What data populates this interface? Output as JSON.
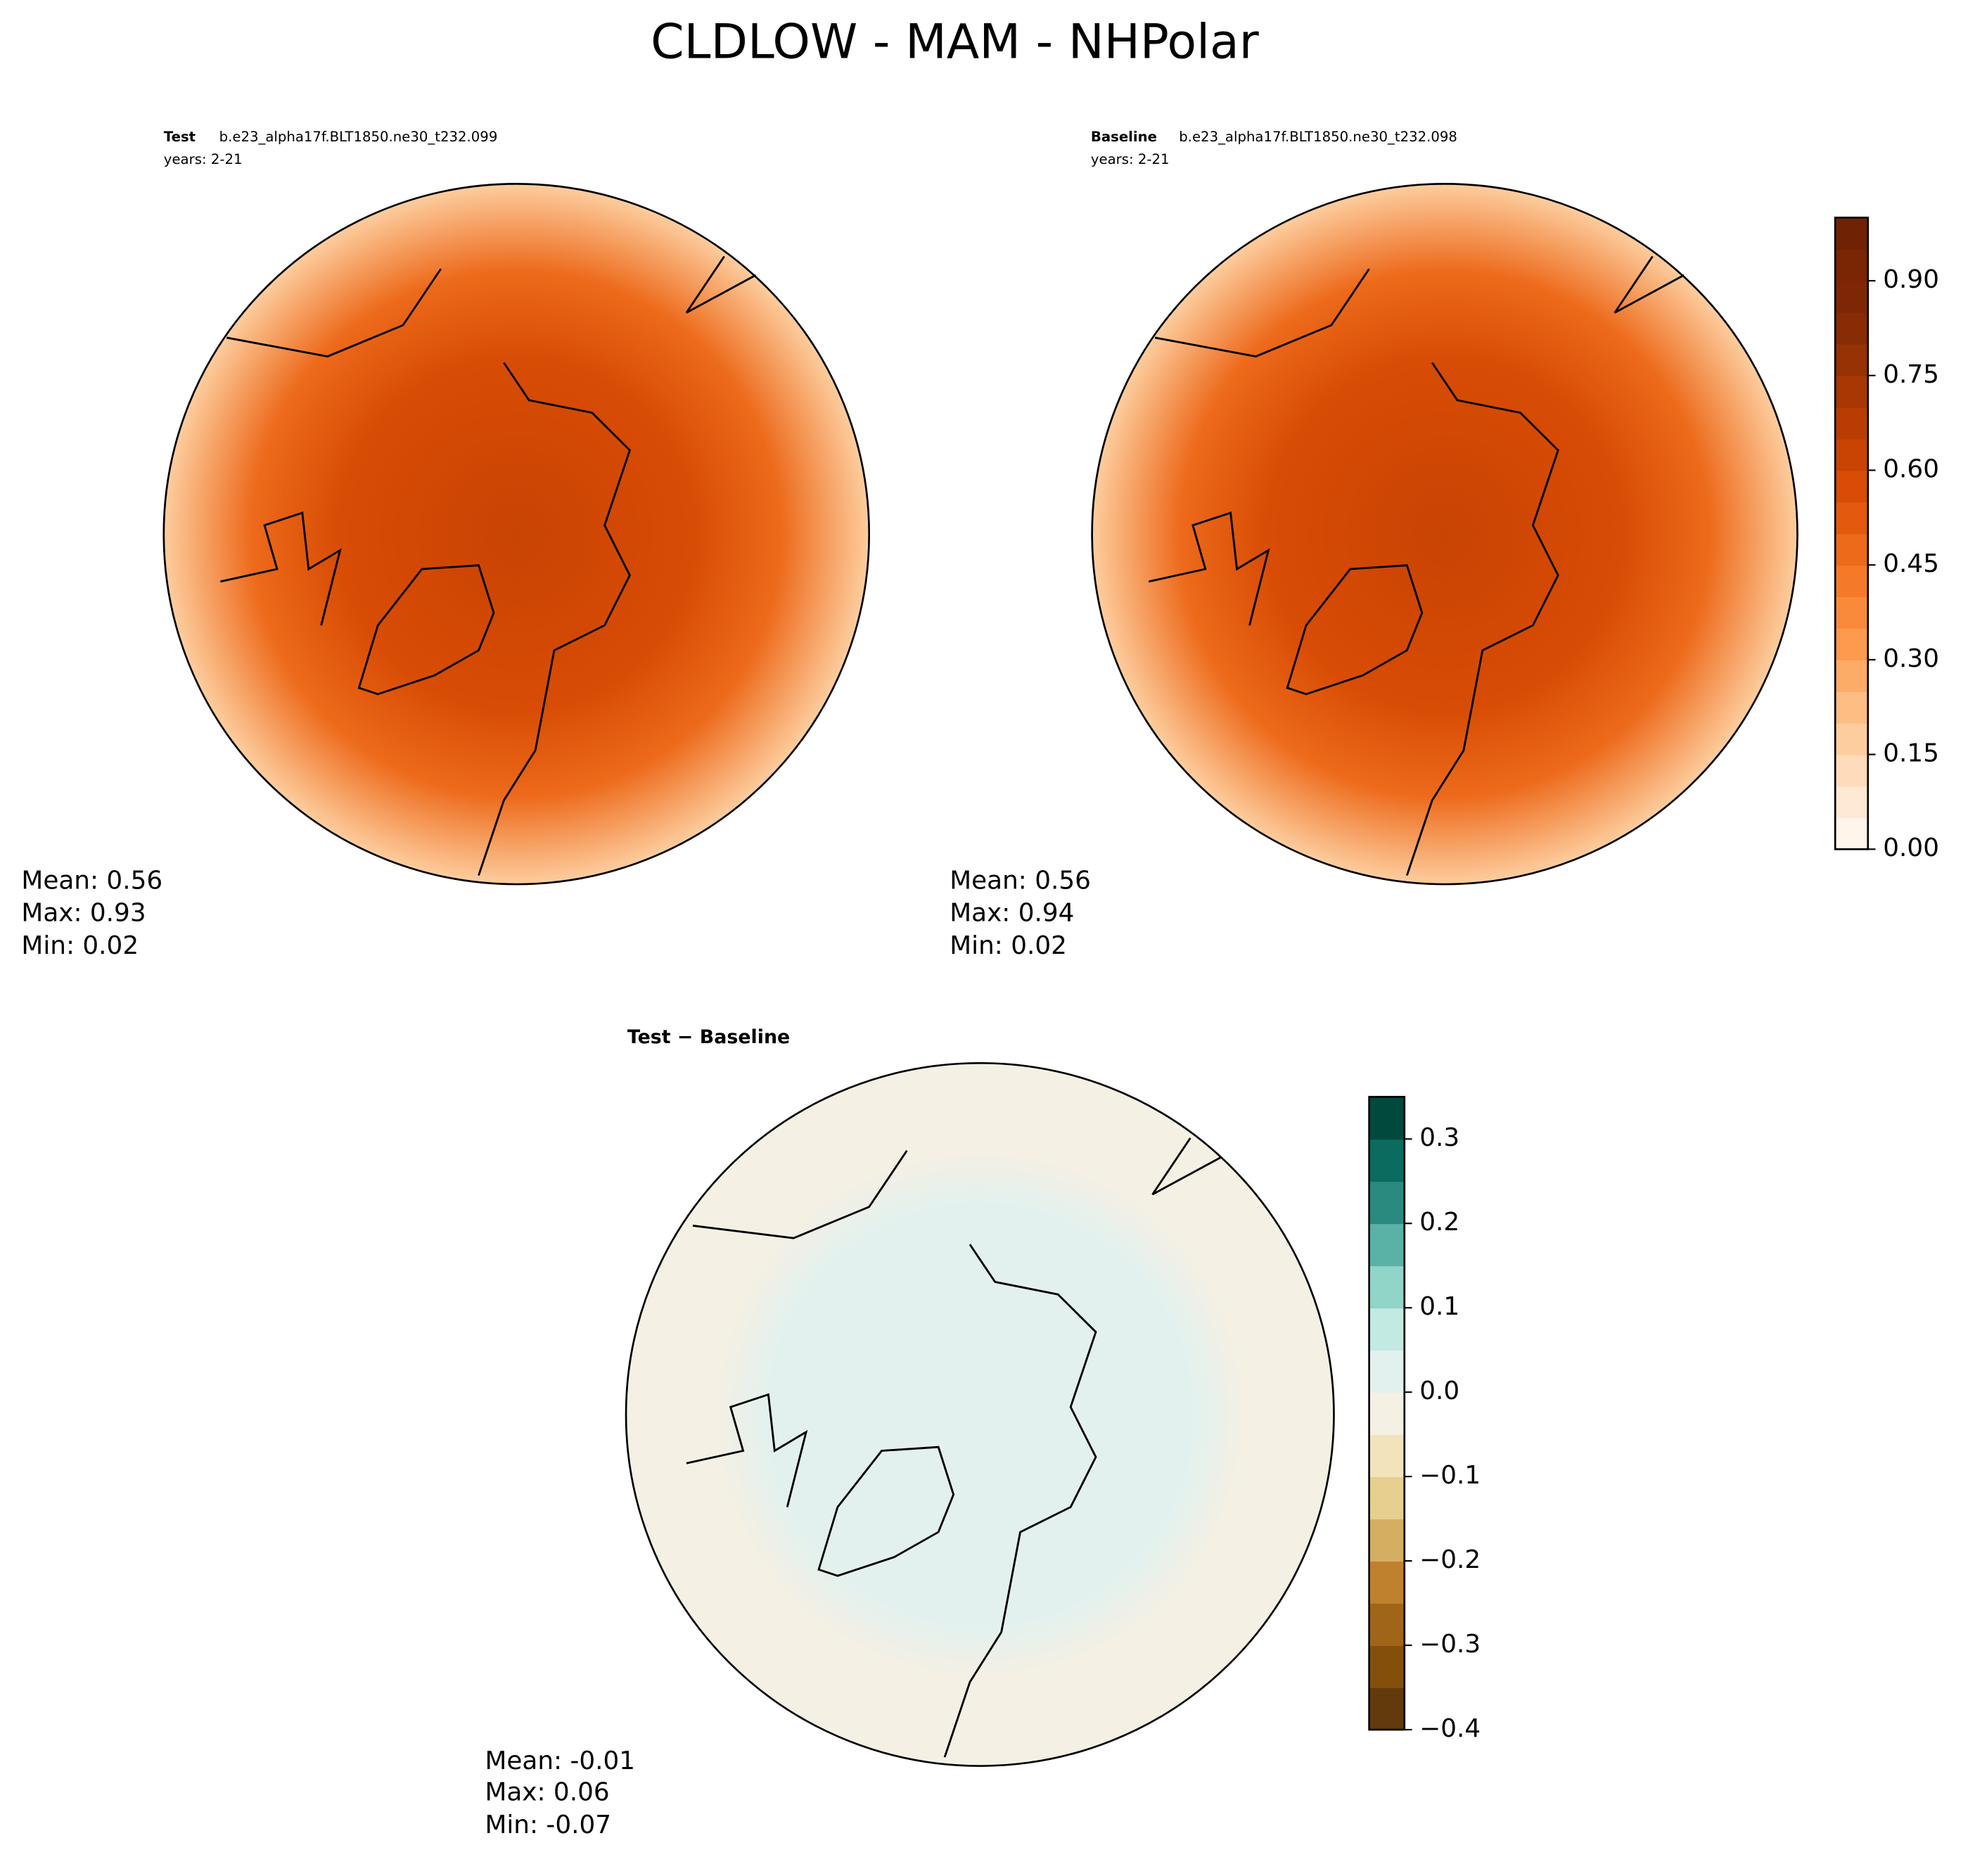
{
  "title": "CLDLOW - MAM - NHPolar",
  "panels": [
    {
      "label_bold": "Test",
      "label": "b.e23_alpha17f.BLT1850.ne30_t232.099",
      "years": "years: 2-21",
      "stats": [
        "Mean:  0.56",
        "Max:  0.93",
        "Min:  0.02"
      ]
    },
    {
      "label_bold": "Baseline",
      "label": "b.e23_alpha17f.BLT1850.ne30_t232.098",
      "years": "years: 2-21",
      "stats": [
        "Mean:  0.56",
        "Max:  0.94",
        "Min:  0.02"
      ]
    },
    {
      "label_bold": "Test − Baseline",
      "stats": [
        "Mean: -0.01",
        "Max:  0.06",
        "Min: -0.07"
      ]
    }
  ],
  "colorbars": [
    {
      "lim": [
        0,
        1
      ],
      "ticks": [
        {
          "value": 0,
          "label": "0.00"
        },
        {
          "value": 0.15,
          "label": "0.15"
        },
        {
          "value": 0.3,
          "label": "0.30"
        },
        {
          "value": 0.45,
          "label": "0.45"
        },
        {
          "value": 0.6,
          "label": "0.60"
        },
        {
          "value": 0.75,
          "label": "0.75"
        },
        {
          "value": 0.9,
          "label": "0.90"
        }
      ],
      "colors": [
        "#fff5eb",
        "#fee9d4",
        "#fedcbb",
        "#fdcd9e",
        "#fdbd83",
        "#fdac67",
        "#fd9a4e",
        "#f98a3b",
        "#f47a2a",
        "#ed6a1b",
        "#e35a0f",
        "#d84c05",
        "#c94303",
        "#b93d02",
        "#a83703",
        "#963203",
        "#872c04",
        "#7f2704",
        "#7a2504",
        "#702204"
      ]
    },
    {
      "lim": [
        -0.4,
        0.35
      ],
      "ticks": [
        {
          "value": -0.4,
          "label": "−0.4"
        },
        {
          "value": -0.3,
          "label": "−0.3"
        },
        {
          "value": -0.2,
          "label": "−0.2"
        },
        {
          "value": -0.1,
          "label": "−0.1"
        },
        {
          "value": 0,
          "label": "0.0"
        },
        0.1,
        0.2,
        0.3
      ],
      "colors": [
        "#633a0b",
        "#83500c",
        "#a16519",
        "#bf812d",
        "#d4af62",
        "#e6cf8f",
        "#f1e4bb",
        "#f4f0e4",
        "#e3f1ee",
        "#c3e9e3",
        "#91d4c8",
        "#5ab1a5",
        "#2a8a80",
        "#0b6b5f",
        "#01493d"
      ]
    }
  ]
}
